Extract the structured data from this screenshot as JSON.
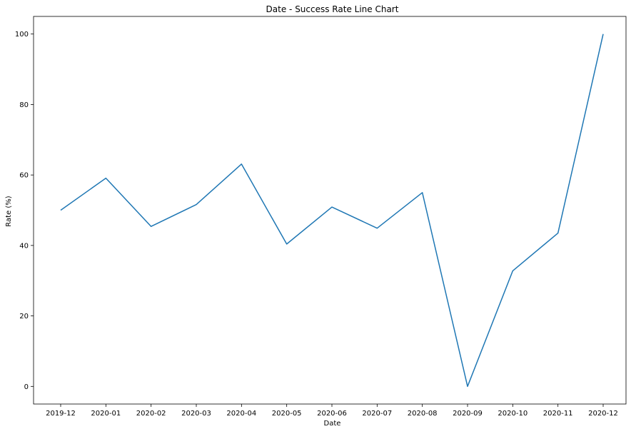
{
  "chart_data": {
    "type": "line",
    "title": "Date - Success Rate Line Chart",
    "xlabel": "Date",
    "ylabel": "Rate (%)",
    "categories": [
      "2019-12",
      "2020-01",
      "2020-02",
      "2020-03",
      "2020-04",
      "2020-05",
      "2020-06",
      "2020-07",
      "2020-08",
      "2020-09",
      "2020-10",
      "2020-11",
      "2020-12"
    ],
    "series": [
      {
        "values": [
          50.0,
          59.1,
          45.4,
          51.6,
          63.1,
          40.4,
          50.9,
          44.9,
          55.0,
          0.0,
          32.8,
          43.5,
          100.0
        ],
        "color": "#1f77b4"
      }
    ],
    "ylim": [
      -5,
      105
    ],
    "yticks": [
      0,
      20,
      40,
      60,
      80,
      100
    ],
    "ytick_labels": [
      "0",
      "20",
      "40",
      "60",
      "80",
      "100"
    ],
    "grid": false,
    "legend": "none"
  }
}
